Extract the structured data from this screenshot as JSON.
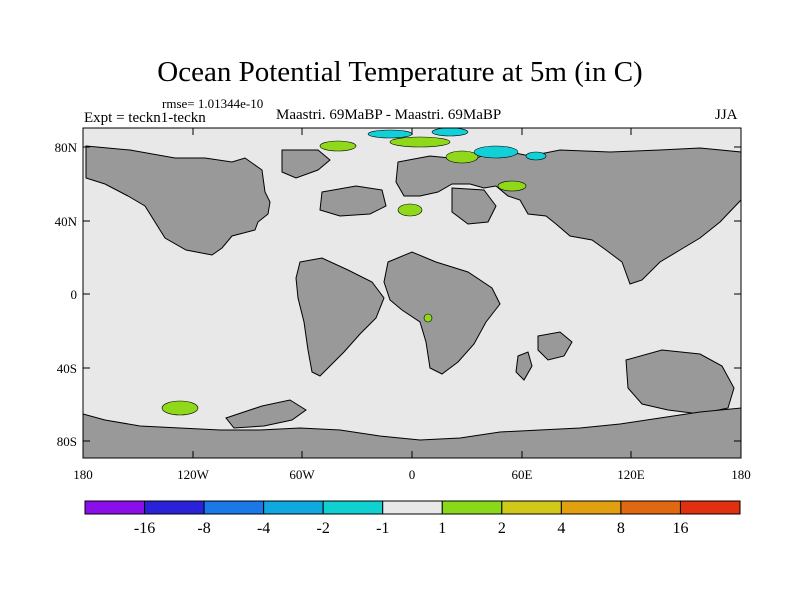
{
  "title": "Ocean Potential Temperature at 5m (in C)",
  "rmse": "rmse= 1.01344e-10",
  "experiment": "Expt = teckn1-teckn",
  "comparison": "Maastri.  69MaBP - Maastri.  69MaBP",
  "season": "JJA",
  "colors": {
    "ocean": "#e8e8e8",
    "land": "#999999",
    "green": "#8fd81a",
    "cyan": "#12d0d8"
  },
  "y_tick_labels": [
    "80N",
    "40N",
    "0",
    "40S",
    "80S"
  ],
  "x_tick_labels": [
    "180",
    "120W",
    "60W",
    "0",
    "60E",
    "120E",
    "180"
  ],
  "colorbar": {
    "labels": [
      "-16",
      "-8",
      "-4",
      "-2",
      "-1",
      "1",
      "2",
      "4",
      "8",
      "16"
    ],
    "colors": [
      "#8a0fe8",
      "#2a22d8",
      "#1a78e8",
      "#10a8e0",
      "#10d0d0",
      "#e8e8e8",
      "#8ad81a",
      "#d0c81a",
      "#e0a010",
      "#e06810",
      "#e03010"
    ]
  }
}
